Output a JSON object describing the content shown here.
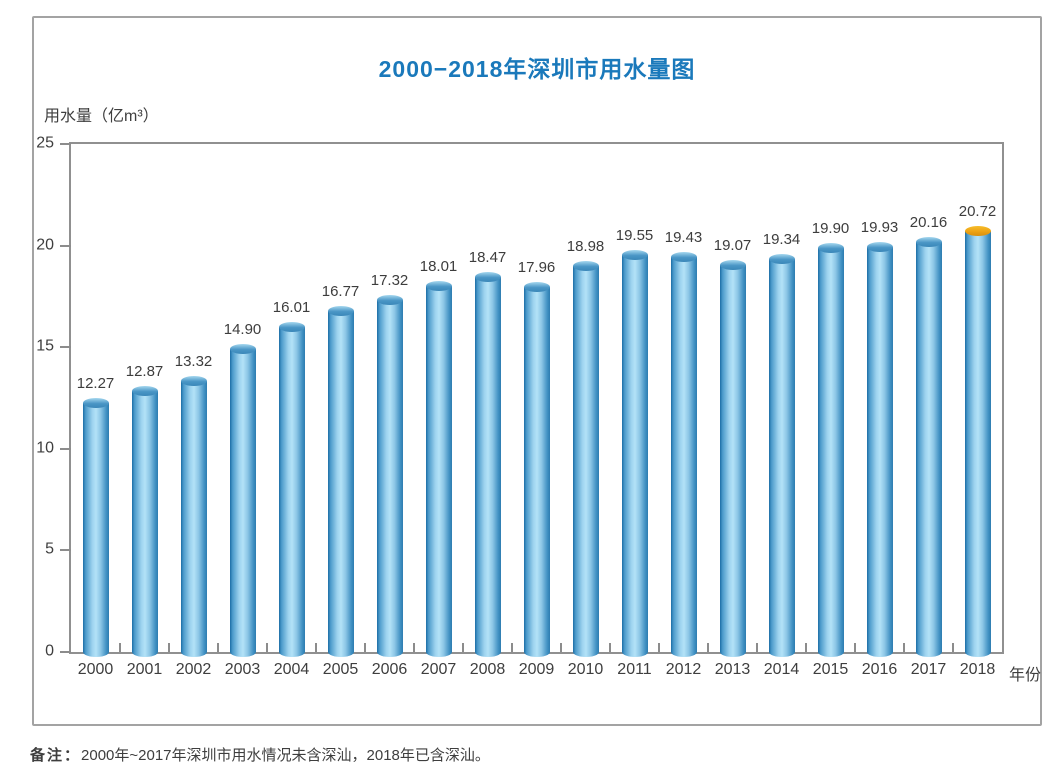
{
  "note": {
    "label": "备注：",
    "text": "2000年~2017年深圳市用水情况未含深汕，2018年已含深汕。"
  },
  "chart_data": {
    "type": "bar",
    "title": "2000−2018年深圳市用水量图",
    "ylabel": "用水量（亿m³）",
    "xlabel": "年份",
    "categories": [
      "2000",
      "2001",
      "2002",
      "2003",
      "2004",
      "2005",
      "2006",
      "2007",
      "2008",
      "2009",
      "2010",
      "2011",
      "2012",
      "2013",
      "2014",
      "2015",
      "2016",
      "2017",
      "2018"
    ],
    "values": [
      12.27,
      12.87,
      13.32,
      14.9,
      16.01,
      16.77,
      17.32,
      18.01,
      18.47,
      17.96,
      18.98,
      19.55,
      19.43,
      19.07,
      19.34,
      19.9,
      19.93,
      20.16,
      20.72
    ],
    "ylim": [
      0,
      25
    ],
    "yticks": [
      0,
      5,
      10,
      15,
      20,
      25
    ],
    "grid": false,
    "legend_position": "none",
    "data_labels": true,
    "bar_style": "3d-cylinder",
    "highlight": {
      "category": "2018",
      "cap_color": "#f0a61c",
      "meaning": "2018 bar has an orange/gold top cap"
    },
    "colors": {
      "title_blue": "#1a79bb",
      "bar_edge_dark": "#1c6da6",
      "bar_center_light": "#b3e2f7",
      "bar_cap_blue": "#4a96c6",
      "highlight_cap_orange": "#f0a61c",
      "axis_gray": "#909090",
      "text_gray": "#3e3e3e"
    }
  }
}
